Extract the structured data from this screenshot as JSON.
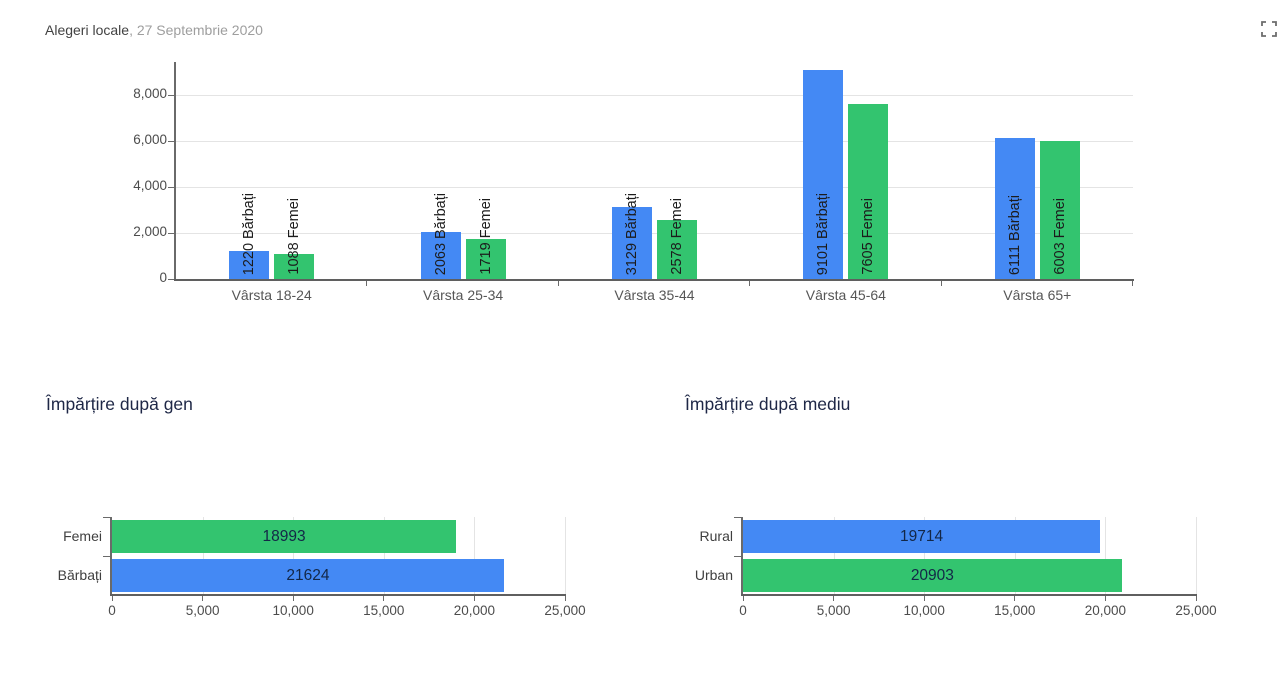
{
  "header": {
    "title": "Alegeri locale",
    "subtitle": ", 27 Septembrie 2020"
  },
  "icons": {
    "fullscreen": "fullscreen-expand-corners"
  },
  "colors": {
    "barbati_blue": "#4489F4",
    "femei_green": "#33C46F",
    "grid": "#E4E4E4",
    "axis": "#6A6A6A",
    "bar_value_text": "#132747"
  },
  "chart_data": [
    {
      "id": "varsta_gen",
      "type": "bar",
      "orientation": "vertical",
      "title": "",
      "categories": [
        "Vârsta 18-24",
        "Vârsta 25-34",
        "Vârsta 35-44",
        "Vârsta 45-64",
        "Vârsta 65+"
      ],
      "series": [
        {
          "name": "Bărbați",
          "color": "#4489F4",
          "values": [
            1220,
            2063,
            3129,
            9101,
            6111
          ]
        },
        {
          "name": "Femei",
          "color": "#33C46F",
          "values": [
            1088,
            1719,
            2578,
            7605,
            6003
          ]
        }
      ],
      "bar_labels": [
        [
          "1220 Bărbați",
          "2063 Bărbați",
          "3129 Bărbați",
          "9101 Bărbați",
          "6111 Bărbați"
        ],
        [
          "1088 Femei",
          "1719 Femei",
          "2578 Femei",
          "7605 Femei",
          "6003 Femei"
        ]
      ],
      "ylim": [
        0,
        9450
      ],
      "yticks": [
        0,
        2000,
        4000,
        6000,
        8000
      ],
      "ytick_labels": [
        "0",
        "2,000",
        "4,000",
        "6,000",
        "8,000"
      ],
      "grid": true,
      "legend": "none"
    },
    {
      "id": "gen",
      "type": "bar",
      "orientation": "horizontal",
      "title": "Împărțire după gen",
      "categories": [
        "Femei",
        "Bărbați"
      ],
      "values": [
        18993,
        21624
      ],
      "value_labels": [
        "18993",
        "21624"
      ],
      "colors": [
        "#33C46F",
        "#4489F4"
      ],
      "xlim": [
        0,
        25000
      ],
      "xticks": [
        0,
        5000,
        10000,
        15000,
        20000,
        25000
      ],
      "xtick_labels": [
        "0",
        "5,000",
        "10,000",
        "15,000",
        "20,000",
        "25,000"
      ],
      "grid": true
    },
    {
      "id": "mediu",
      "type": "bar",
      "orientation": "horizontal",
      "title": "Împărțire după mediu",
      "categories": [
        "Rural",
        "Urban"
      ],
      "values": [
        19714,
        20903
      ],
      "value_labels": [
        "19714",
        "20903"
      ],
      "colors": [
        "#4489F4",
        "#33C46F"
      ],
      "xlim": [
        0,
        25000
      ],
      "xticks": [
        0,
        5000,
        10000,
        15000,
        20000,
        25000
      ],
      "xtick_labels": [
        "0",
        "5,000",
        "10,000",
        "15,000",
        "20,000",
        "25,000"
      ],
      "grid": true
    }
  ]
}
